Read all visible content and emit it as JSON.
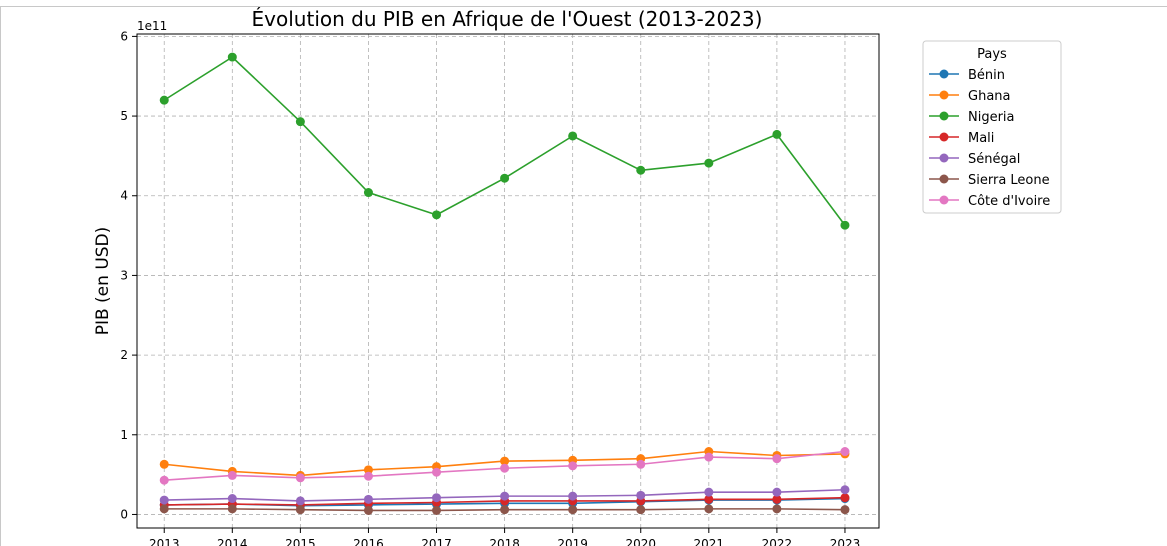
{
  "chart_data": {
    "type": "line",
    "title": "Évolution du PIB en Afrique de l'Ouest (2013-2023)",
    "xlabel": "",
    "ylabel": "PIB (en USD)",
    "y_offset_label": "1e11",
    "y_scale": 100000000000.0,
    "x": [
      2013,
      2014,
      2015,
      2016,
      2017,
      2018,
      2019,
      2020,
      2021,
      2022,
      2023
    ],
    "xlim": [
      2012.6,
      2023.5
    ],
    "ylim": [
      -17000000000.0,
      603000000000.0
    ],
    "yticks": [
      0,
      100000000000.0,
      200000000000.0,
      300000000000.0,
      400000000000.0,
      500000000000.0,
      600000000000.0
    ],
    "ytick_labels": [
      "0",
      "1",
      "2",
      "3",
      "4",
      "5",
      "6"
    ],
    "grid": true,
    "legend_title": "Pays",
    "legend_position": "upper-right-outside",
    "series": [
      {
        "name": "Bénin",
        "color": "#1f77b4",
        "values": [
          12000000000.0,
          13000000000.0,
          11000000000.0,
          12000000000.0,
          13000000000.0,
          14000000000.0,
          14000000000.0,
          16000000000.0,
          18000000000.0,
          18000000000.0,
          20000000000.0
        ]
      },
      {
        "name": "Ghana",
        "color": "#ff7f0e",
        "values": [
          63000000000.0,
          54000000000.0,
          49000000000.0,
          56000000000.0,
          60000000000.0,
          67000000000.0,
          68000000000.0,
          70000000000.0,
          79000000000.0,
          74000000000.0,
          76000000000.0
        ]
      },
      {
        "name": "Nigeria",
        "color": "#2ca02c",
        "values": [
          520000000000.0,
          574000000000.0,
          493000000000.0,
          404000000000.0,
          376000000000.0,
          422000000000.0,
          475000000000.0,
          432000000000.0,
          441000000000.0,
          477000000000.0,
          363000000000.0
        ]
      },
      {
        "name": "Mali",
        "color": "#d62728",
        "values": [
          12000000000.0,
          13000000000.0,
          12000000000.0,
          14000000000.0,
          15000000000.0,
          17000000000.0,
          17000000000.0,
          17000000000.0,
          19000000000.0,
          19000000000.0,
          21000000000.0
        ]
      },
      {
        "name": "Sénégal",
        "color": "#9467bd",
        "values": [
          18000000000.0,
          20000000000.0,
          17000000000.0,
          19000000000.0,
          21000000000.0,
          23000000000.0,
          23000000000.0,
          24000000000.0,
          28000000000.0,
          28000000000.0,
          31000000000.0
        ]
      },
      {
        "name": "Sierra Leone",
        "color": "#8c564b",
        "values": [
          7000000000.0,
          7000000000.0,
          6000000000.0,
          5000000000.0,
          5000000000.0,
          6000000000.0,
          6000000000.0,
          6000000000.0,
          7000000000.0,
          7000000000.0,
          6000000000.0
        ]
      },
      {
        "name": "Côte d'Ivoire",
        "color": "#e377c2",
        "values": [
          43000000000.0,
          49000000000.0,
          46000000000.0,
          48000000000.0,
          53000000000.0,
          58000000000.0,
          61000000000.0,
          63000000000.0,
          72000000000.0,
          70000000000.0,
          79000000000.0
        ]
      }
    ]
  }
}
